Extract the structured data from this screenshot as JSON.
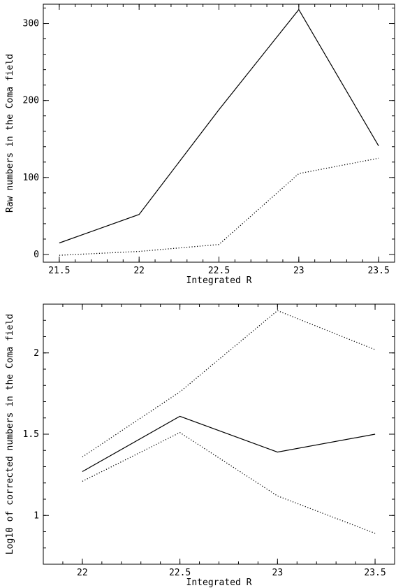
{
  "chart_data": [
    {
      "type": "line",
      "xlabel": "Integrated R",
      "ylabel": "Raw numbers in the Coma field",
      "xlim": [
        21.4,
        23.6
      ],
      "ylim": [
        -10,
        325
      ],
      "x_ticks": [
        "21.5",
        "22",
        "22.5",
        "23",
        "23.5"
      ],
      "y_ticks": [
        "0",
        "100",
        "200",
        "300"
      ],
      "x_minor_step": 0.1,
      "y_minor_step": 20,
      "grid": false,
      "series": [
        {
          "style": "solid",
          "x": [
            21.5,
            22,
            22.5,
            23,
            23.5
          ],
          "values": [
            15,
            52,
            188,
            318,
            141
          ]
        },
        {
          "style": "dotted",
          "x": [
            21.5,
            22,
            22.5,
            23,
            23.5
          ],
          "values": [
            -1,
            4,
            13,
            105,
            125
          ]
        }
      ]
    },
    {
      "type": "line",
      "xlabel": "Integrated R",
      "ylabel": "Log10 of corrected numbers in the Coma field",
      "xlim": [
        21.8,
        23.6
      ],
      "ylim": [
        0.7,
        2.3
      ],
      "x_ticks": [
        "22",
        "22.5",
        "23",
        "23.5"
      ],
      "y_ticks": [
        "1",
        "1.5",
        "2"
      ],
      "x_minor_step": 0.1,
      "y_minor_step": 0.1,
      "grid": false,
      "series": [
        {
          "style": "solid",
          "x": [
            22,
            22.5,
            23,
            23.5
          ],
          "values": [
            1.27,
            1.61,
            1.39,
            1.5
          ]
        },
        {
          "style": "dotted",
          "x": [
            22,
            22.5,
            23,
            23.5
          ],
          "values": [
            1.36,
            1.76,
            2.26,
            2.02
          ]
        },
        {
          "style": "dotted",
          "x": [
            22,
            22.5,
            23,
            23.5
          ],
          "values": [
            1.21,
            1.51,
            1.12,
            0.89
          ]
        }
      ]
    }
  ]
}
